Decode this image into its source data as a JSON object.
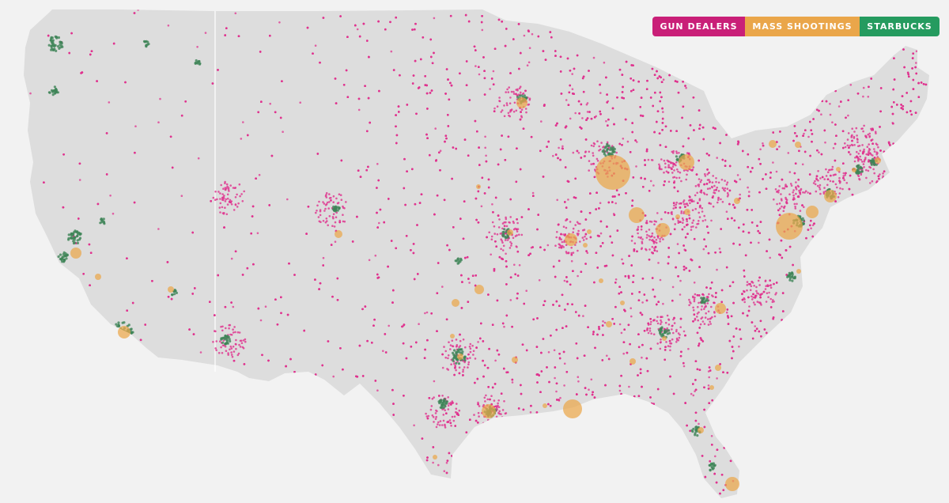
{
  "legend": {
    "gun_dealers": "GUN DEALERS",
    "mass_shootings": "MASS SHOOTINGS",
    "starbucks": "STARBUCKS"
  },
  "colors": {
    "background": "#f2f2f2",
    "land": "#dddddd",
    "border": "#ffffff",
    "gun_dealers": "#c91f78",
    "gun_dealer_dots": "#e0338f",
    "mass_shootings": "#eaa64a",
    "starbucks": "#259b5f",
    "starbucks_dots": "#3f8458"
  },
  "map": {
    "projection": "Contiguous United States",
    "layers": [
      "Gun dealers",
      "Mass shootings",
      "Starbucks"
    ]
  }
}
